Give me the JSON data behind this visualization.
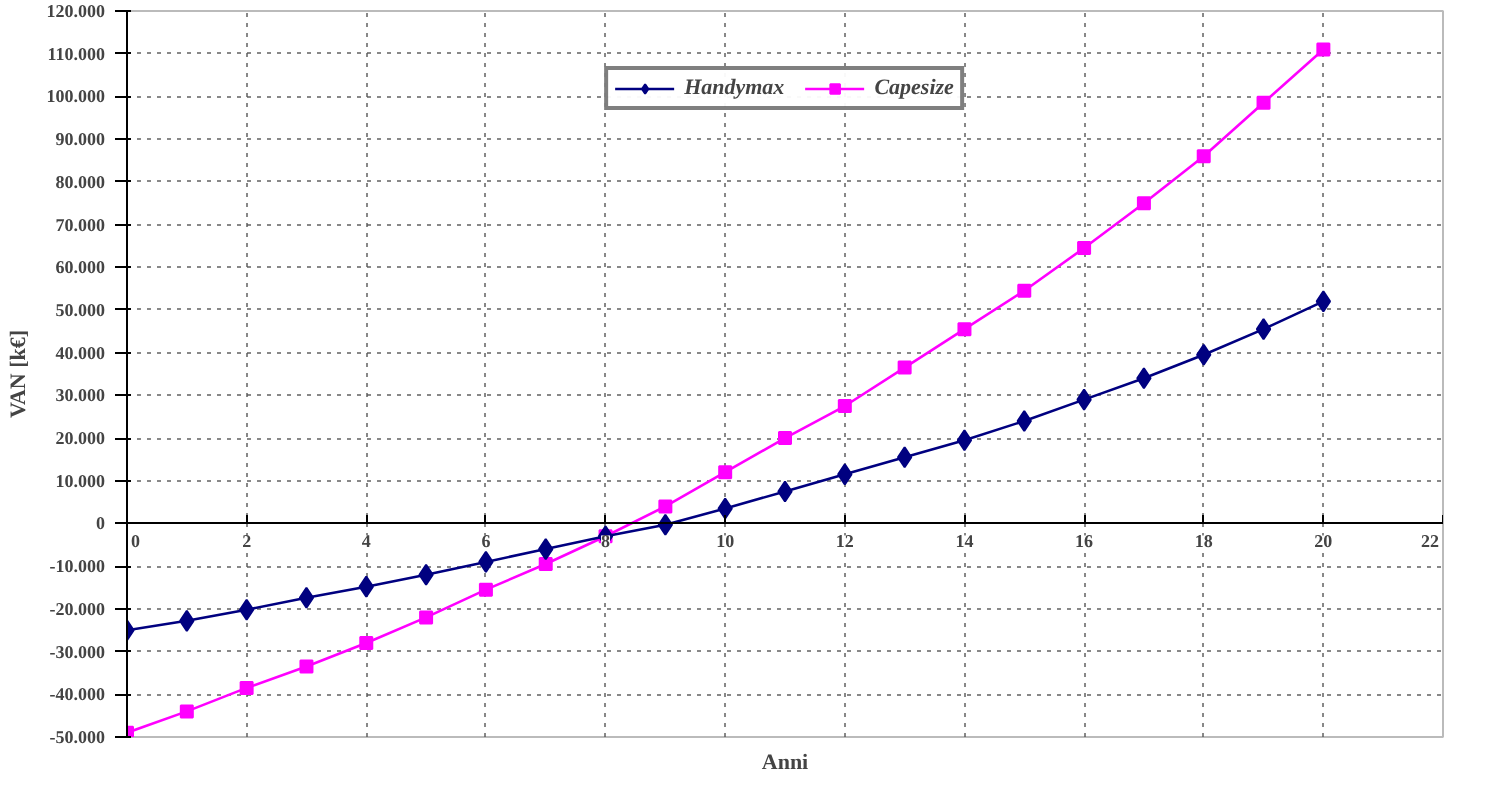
{
  "chart_data": {
    "type": "line",
    "xlabel": "Anni",
    "ylabel": "VAN [k€]",
    "x": [
      0,
      1,
      2,
      3,
      4,
      5,
      6,
      7,
      8,
      9,
      10,
      11,
      12,
      13,
      14,
      15,
      16,
      17,
      18,
      19,
      20
    ],
    "series": [
      {
        "name": "Handymax",
        "color": "#000080",
        "marker": "diamond",
        "values": [
          -25000,
          -22800,
          -20200,
          -17400,
          -14800,
          -12000,
          -9000,
          -6000,
          -3000,
          -300,
          3500,
          7500,
          11500,
          15500,
          19500,
          24000,
          29000,
          34000,
          39500,
          45500,
          52000
        ]
      },
      {
        "name": "Capesize",
        "color": "#ff00ff",
        "marker": "square",
        "values": [
          -49000,
          -44000,
          -38500,
          -33500,
          -28000,
          -22000,
          -15500,
          -9500,
          -3000,
          4000,
          12000,
          20000,
          27500,
          36500,
          45500,
          54500,
          64500,
          75000,
          86000,
          98500,
          111000
        ]
      }
    ],
    "xlim": [
      0,
      22
    ],
    "xticks": [
      0,
      2,
      4,
      6,
      8,
      10,
      12,
      14,
      16,
      18,
      20,
      22
    ],
    "ylim": [
      -50000,
      120000
    ],
    "yticks": [
      {
        "value": -50000,
        "label": "-50.000"
      },
      {
        "value": -40000,
        "label": "-40.000"
      },
      {
        "value": -30000,
        "label": "-30.000"
      },
      {
        "value": -20000,
        "label": "-20.000"
      },
      {
        "value": -10000,
        "label": "-10.000"
      },
      0,
      {
        "value": 10000,
        "label": "10.000"
      },
      {
        "value": 20000,
        "label": "20.000"
      },
      {
        "value": 30000,
        "label": "30.000"
      },
      {
        "value": 40000,
        "label": "40.000"
      },
      {
        "value": 50000,
        "label": "50.000"
      },
      {
        "value": 60000,
        "label": "60.000"
      },
      {
        "value": 70000,
        "label": "70.000"
      },
      {
        "value": 80000,
        "label": "80.000"
      },
      {
        "value": 90000,
        "label": "90.000"
      },
      {
        "value": 100000,
        "label": "100.000"
      },
      {
        "value": 110000,
        "label": "110.000"
      },
      {
        "value": 120000,
        "label": "120.000"
      }
    ],
    "grid": true,
    "legend": "top",
    "line_style": "solid"
  }
}
